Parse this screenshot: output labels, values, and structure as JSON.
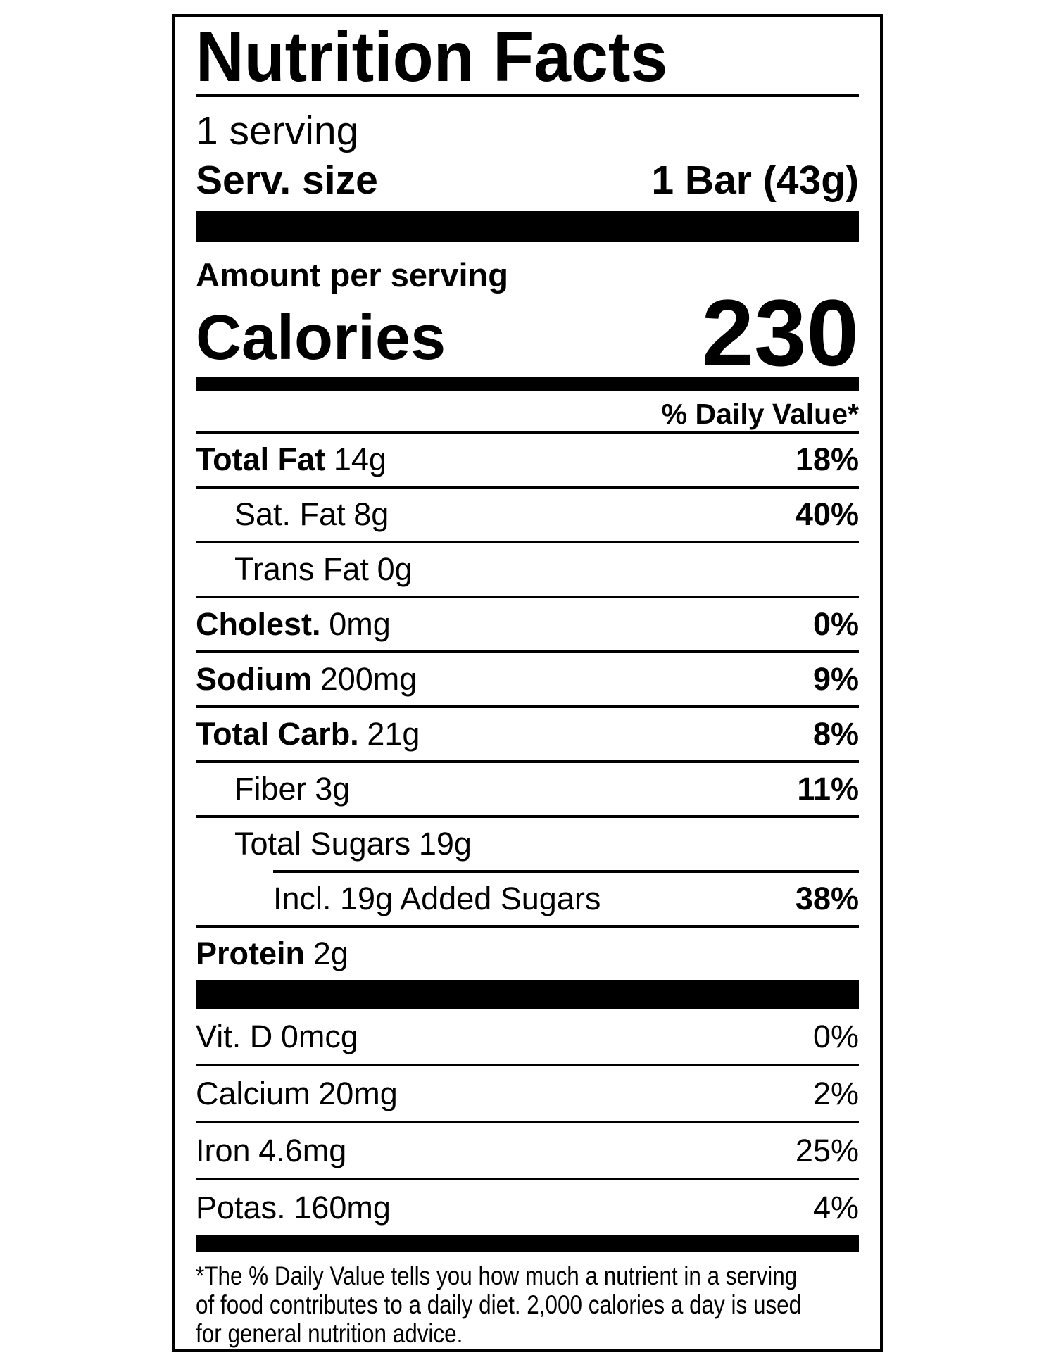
{
  "label": {
    "title": "Nutrition Facts",
    "servings_per_container": "1 serving",
    "serving_size_label": "Serv. size",
    "serving_size_value": "1 Bar (43g)",
    "amount_per_serving": "Amount per serving",
    "calories_label": "Calories",
    "calories_value": "230",
    "daily_value_header": "% Daily Value*",
    "nutrients": [
      {
        "name": "Total Fat",
        "amount": "14g",
        "dv": "18%"
      },
      {
        "name": "Sat. Fat",
        "amount": "8g",
        "dv": "40%"
      },
      {
        "name": "Trans Fat",
        "amount": "0g",
        "dv": ""
      },
      {
        "name": "Cholest.",
        "amount": "0mg",
        "dv": "0%"
      },
      {
        "name": "Sodium",
        "amount": "200mg",
        "dv": "9%"
      },
      {
        "name": "Total Carb.",
        "amount": "21g",
        "dv": "8%"
      },
      {
        "name": "Fiber",
        "amount": "3g",
        "dv": "11%"
      },
      {
        "name": "Total Sugars",
        "amount": "19g",
        "dv": ""
      },
      {
        "name": "Incl. 19g Added Sugars",
        "amount": "",
        "dv": "38%"
      },
      {
        "name": "Protein",
        "amount": "2g",
        "dv": ""
      }
    ],
    "micronutrients": [
      {
        "name": "Vit. D",
        "amount": "0mcg",
        "dv": "0%"
      },
      {
        "name": "Calcium",
        "amount": "20mg",
        "dv": "2%"
      },
      {
        "name": "Iron",
        "amount": "4.6mg",
        "dv": "25%"
      },
      {
        "name": "Potas.",
        "amount": "160mg",
        "dv": "4%"
      }
    ],
    "footnote_lines": [
      "*The % Daily Value tells you how much a nutrient in a serving",
      "of food contributes to a daily diet. 2,000 calories a day is used",
      "for general nutrition advice."
    ]
  },
  "colors": {
    "ink": "#000000",
    "background": "#ffffff"
  }
}
